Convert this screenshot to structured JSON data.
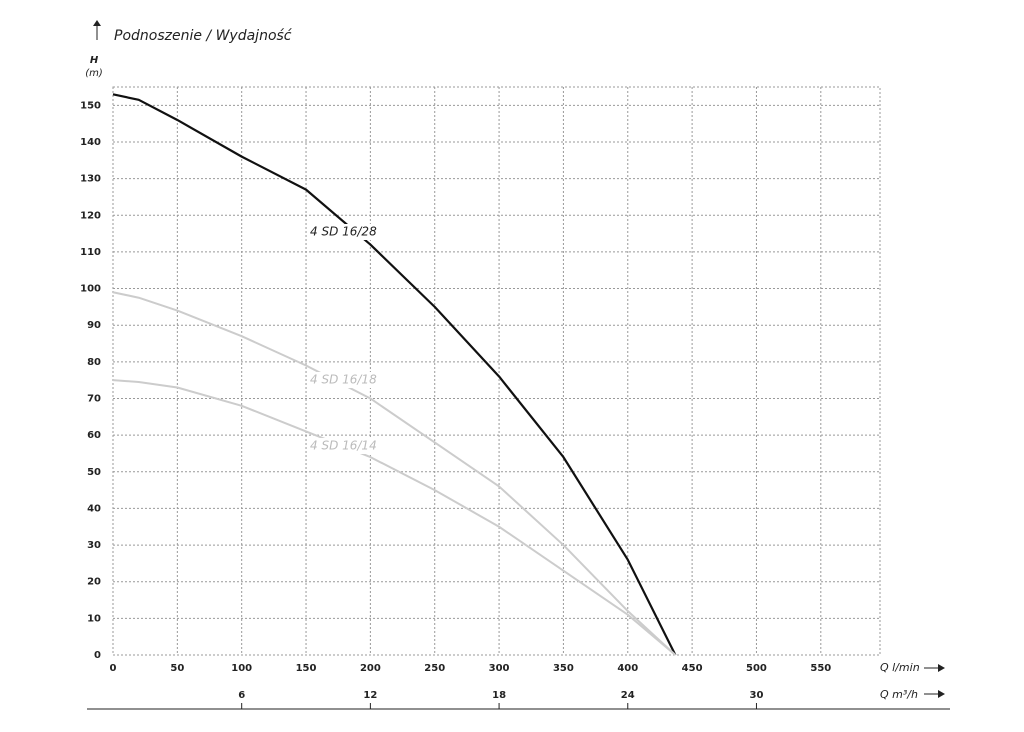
{
  "chart_data": {
    "type": "line",
    "title": "Podnoszenie / Wydajność",
    "y_label": "H",
    "y_unit": "(m)",
    "x_label": "Q l/min",
    "x2_label": "Q m³/h",
    "x": [
      0,
      20,
      50,
      100,
      150,
      200,
      250,
      300,
      350,
      400,
      437
    ],
    "series": [
      {
        "name": "4 SD 16/28",
        "color": "#111111",
        "values": [
          153,
          151.5,
          146,
          136,
          127,
          112,
          95,
          76,
          54,
          26,
          0
        ]
      },
      {
        "name": "4 SD 16/18",
        "color": "#cccccc",
        "values": [
          99,
          97.5,
          94,
          87,
          79,
          70,
          58,
          46,
          30,
          12,
          0
        ]
      },
      {
        "name": "4 SD 16/14",
        "color": "#cccccc",
        "values": [
          75,
          74.5,
          73,
          68,
          61,
          54,
          45,
          35,
          23,
          11,
          0
        ]
      }
    ],
    "xlim": [
      0,
      596
    ],
    "xticks": [
      0,
      50,
      100,
      150,
      200,
      250,
      300,
      350,
      400,
      450,
      500,
      550
    ],
    "x2lim": [
      0,
      35.76
    ],
    "x2ticks": [
      6,
      12,
      18,
      24,
      30
    ],
    "ylim": [
      0,
      155
    ],
    "yticks": [
      0,
      10,
      20,
      30,
      40,
      50,
      60,
      70,
      80,
      90,
      100,
      110,
      120,
      130,
      140,
      150
    ],
    "grid": true
  }
}
